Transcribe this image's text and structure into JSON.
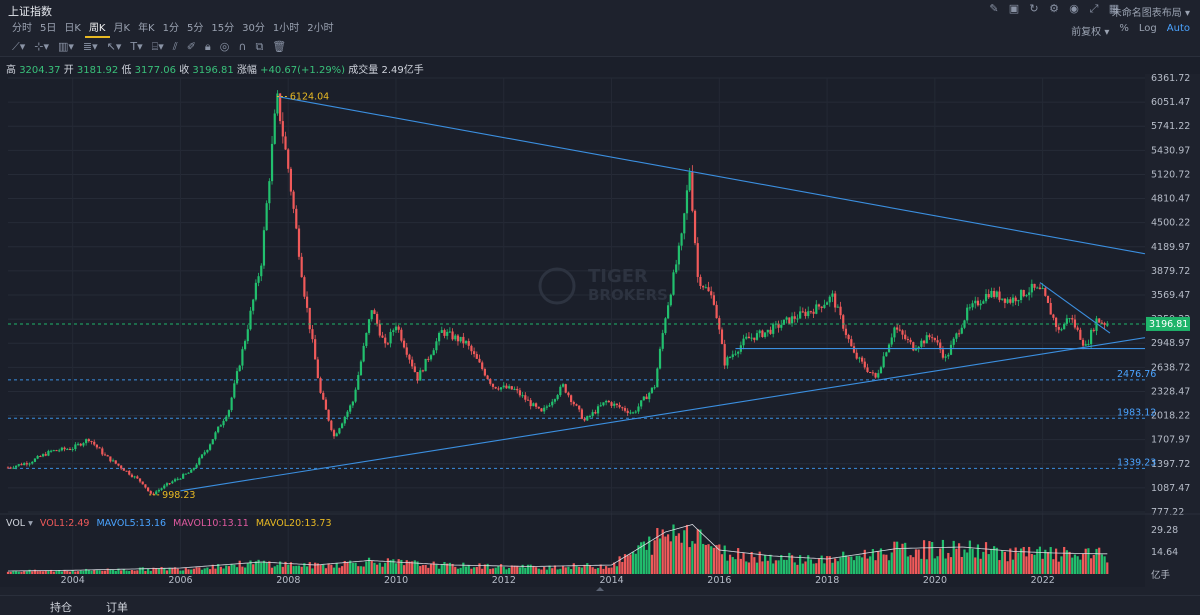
{
  "header": {
    "title": "上证指数",
    "layout_name": "未命名图表布局"
  },
  "periods": [
    "分时",
    "5日",
    "日K",
    "周K",
    "月K",
    "年K",
    "1分",
    "5分",
    "15分",
    "30分",
    "1小时",
    "2小时"
  ],
  "active_period": "周K",
  "right_controls": {
    "adjust": "前复权",
    "percent": "%",
    "log": "Log",
    "auto": "Auto"
  },
  "quote": {
    "high_label": "高",
    "high": "3204.37",
    "open_label": "开",
    "open": "3181.92",
    "low_label": "低",
    "low": "3177.06",
    "close_label": "收",
    "close": "3196.81",
    "change_label": "涨幅",
    "change": "+40.67(+1.29%)",
    "volume_label": "成交量",
    "volume": "2.49亿手"
  },
  "watermark": {
    "line1": "TIGER",
    "line2": "BROKERS"
  },
  "volume_panel": {
    "label": "VOL",
    "vol1": "VOL1:2.49",
    "mavol5": "MAVOL5:13.16",
    "mavol10": "MAVOL10:13.11",
    "mavol20": "MAVOL20:13.73",
    "unit": "亿手",
    "ticks": [
      "29.28",
      "14.64"
    ]
  },
  "bottom_tabs": {
    "positions": "持仓",
    "orders": "订单"
  },
  "colors": {
    "up": "#22c06e",
    "down": "#f05a5a",
    "trendline": "#3b8fe0",
    "accent": "#e8b923",
    "current_price": "#1fb46a"
  },
  "chart_data": {
    "type": "candlestick",
    "title": "",
    "x_labels": [
      "2004",
      "2006",
      "2008",
      "2010",
      "2012",
      "2014",
      "2016",
      "2018",
      "2020",
      "2022"
    ],
    "y_ticks": [
      "6361.72",
      "6051.47",
      "5741.22",
      "5430.97",
      "5120.72",
      "4810.47",
      "4500.22",
      "4189.97",
      "3879.72",
      "3569.47",
      "3259.22",
      "2948.97",
      "2638.72",
      "2328.47",
      "2018.22",
      "1707.97",
      "1397.72",
      "1087.47",
      "777.22"
    ],
    "ylim": [
      777.22,
      6361.72
    ],
    "xlim": [
      2002.8,
      2023.9
    ],
    "current_price": "3196.81",
    "annotations": [
      {
        "label": "6124.04",
        "x": 2007.79,
        "y": 6124.04
      },
      {
        "label": "998.23",
        "x": 2005.42,
        "y": 998.23
      }
    ],
    "horizontal_levels": [
      {
        "label": "2476.76",
        "y": 2476.76
      },
      {
        "label": "1983.12",
        "y": 1983.12
      },
      {
        "label": "1339.23",
        "y": 1339.23
      }
    ],
    "series": [
      {
        "name": "close",
        "points": [
          [
            2002.8,
            1350
          ],
          [
            2003.2,
            1420
          ],
          [
            2003.6,
            1560
          ],
          [
            2004.0,
            1600
          ],
          [
            2004.3,
            1720
          ],
          [
            2004.6,
            1500
          ],
          [
            2005.0,
            1300
          ],
          [
            2005.3,
            1150
          ],
          [
            2005.45,
            998.23
          ],
          [
            2005.8,
            1150
          ],
          [
            2006.2,
            1300
          ],
          [
            2006.5,
            1600
          ],
          [
            2006.9,
            2100
          ],
          [
            2007.2,
            3000
          ],
          [
            2007.5,
            4000
          ],
          [
            2007.79,
            6124.04
          ],
          [
            2008.0,
            5200
          ],
          [
            2008.3,
            3600
          ],
          [
            2008.6,
            2300
          ],
          [
            2008.85,
            1750
          ],
          [
            2009.2,
            2200
          ],
          [
            2009.55,
            3400
          ],
          [
            2009.8,
            2900
          ],
          [
            2010.0,
            3200
          ],
          [
            2010.4,
            2500
          ],
          [
            2010.85,
            3100
          ],
          [
            2011.3,
            2950
          ],
          [
            2011.8,
            2400
          ],
          [
            2012.2,
            2350
          ],
          [
            2012.7,
            2050
          ],
          [
            2013.1,
            2400
          ],
          [
            2013.5,
            1950
          ],
          [
            2013.9,
            2200
          ],
          [
            2014.4,
            2050
          ],
          [
            2014.8,
            2400
          ],
          [
            2015.0,
            3300
          ],
          [
            2015.3,
            4300
          ],
          [
            2015.45,
            5178
          ],
          [
            2015.6,
            3800
          ],
          [
            2015.9,
            3500
          ],
          [
            2016.1,
            2700
          ],
          [
            2016.5,
            3000
          ],
          [
            2016.9,
            3100
          ],
          [
            2017.3,
            3250
          ],
          [
            2017.8,
            3400
          ],
          [
            2018.1,
            3550
          ],
          [
            2018.5,
            2800
          ],
          [
            2018.9,
            2500
          ],
          [
            2019.25,
            3150
          ],
          [
            2019.6,
            2900
          ],
          [
            2019.95,
            3050
          ],
          [
            2020.2,
            2750
          ],
          [
            2020.6,
            3350
          ],
          [
            2021.0,
            3600
          ],
          [
            2021.4,
            3500
          ],
          [
            2021.8,
            3650
          ],
          [
            2022.0,
            3600
          ],
          [
            2022.3,
            3100
          ],
          [
            2022.5,
            3300
          ],
          [
            2022.8,
            2900
          ],
          [
            2023.0,
            3250
          ],
          [
            2023.2,
            3196.81
          ]
        ]
      }
    ],
    "trend_lines": [
      {
        "from": [
          2007.79,
          6124.04
        ],
        "to": [
          2023.9,
          4100
        ]
      },
      {
        "from": [
          2006.0,
          1050
        ],
        "to": [
          2023.9,
          3020
        ]
      },
      {
        "from": [
          2016.3,
          2880
        ],
        "to": [
          2023.9,
          2880
        ]
      },
      {
        "from": [
          2021.95,
          3730
        ],
        "to": [
          2023.25,
          3080
        ]
      }
    ],
    "volume_series": [
      [
        2002.8,
        2
      ],
      [
        2004,
        2.5
      ],
      [
        2006,
        4
      ],
      [
        2007.5,
        8
      ],
      [
        2008.5,
        6
      ],
      [
        2009.5,
        9
      ],
      [
        2011,
        6
      ],
      [
        2012.5,
        5
      ],
      [
        2014,
        6
      ],
      [
        2015,
        28
      ],
      [
        2015.5,
        33
      ],
      [
        2016,
        16
      ],
      [
        2017,
        12
      ],
      [
        2018,
        10
      ],
      [
        2019.3,
        17
      ],
      [
        2020.5,
        18
      ],
      [
        2021.5,
        15
      ],
      [
        2022.2,
        14
      ],
      [
        2023,
        13.5
      ]
    ],
    "volume_ylim": [
      0,
      36
    ]
  }
}
